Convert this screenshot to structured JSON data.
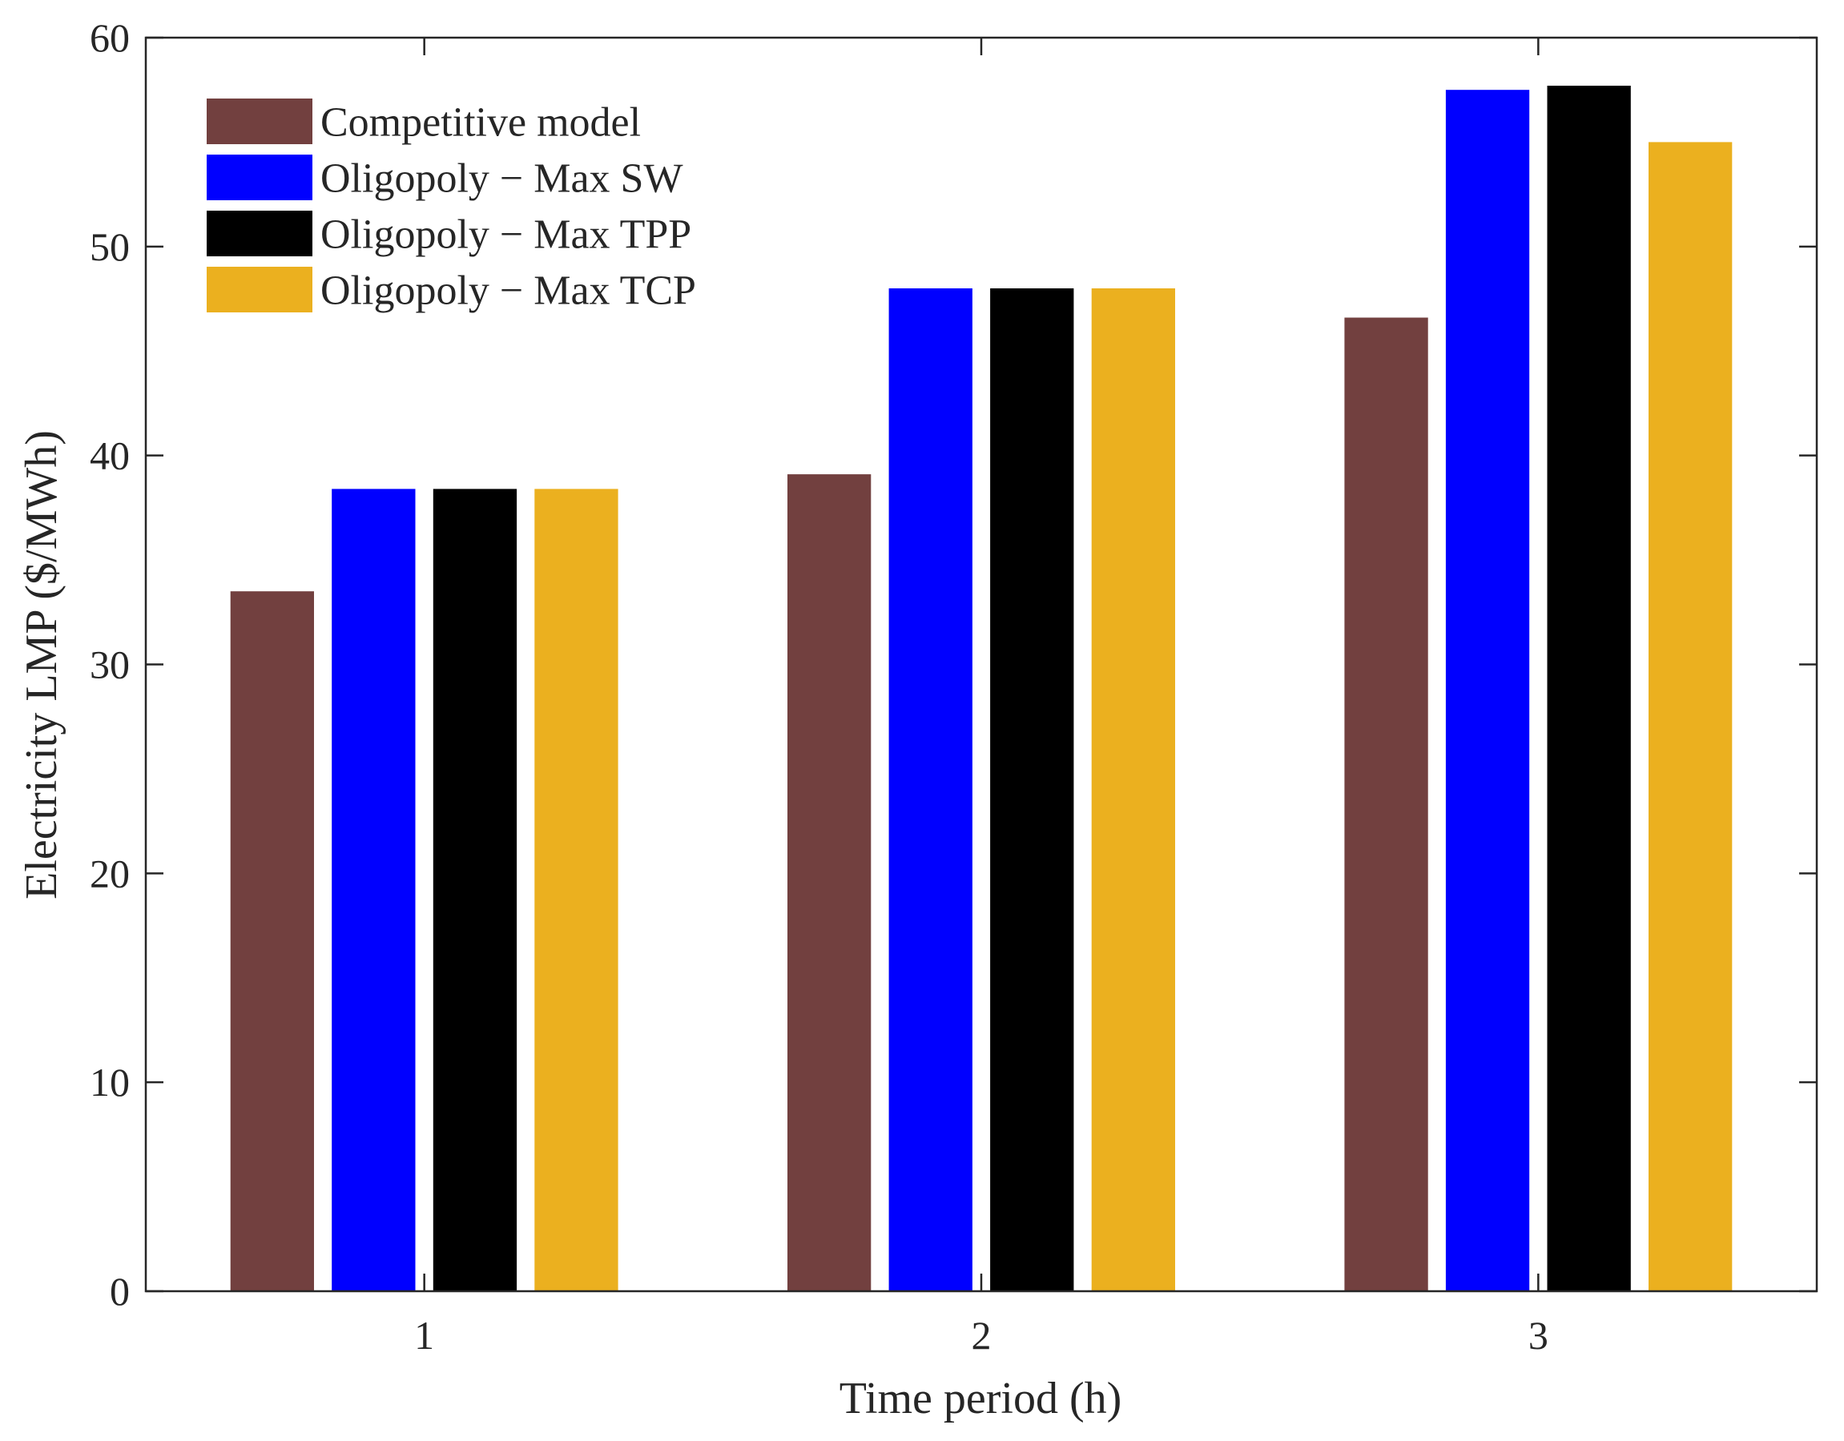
{
  "chart_data": {
    "type": "bar",
    "title": "",
    "xlabel": "Time period (h)",
    "ylabel": "Electricity LMP ($/MWh)",
    "categories": [
      "1",
      "2",
      "3"
    ],
    "ylim": [
      0,
      60
    ],
    "yticks": [
      "0",
      "10",
      "20",
      "30",
      "40",
      "50",
      "60"
    ],
    "legend_position": "top-left",
    "grid": false,
    "series": [
      {
        "name": "Competitive model",
        "color": "#72403F",
        "values": [
          33.5,
          39.1,
          46.6
        ]
      },
      {
        "name": "Oligopoly − Max SW",
        "color": "#0000FF",
        "values": [
          38.4,
          48.0,
          57.5
        ]
      },
      {
        "name": "Oligopoly − Max TPP",
        "color": "#000000",
        "values": [
          38.4,
          48.0,
          57.7
        ]
      },
      {
        "name": "Oligopoly − Max TCP",
        "color": "#EBB01F",
        "values": [
          38.4,
          48.0,
          55.0
        ]
      }
    ]
  }
}
